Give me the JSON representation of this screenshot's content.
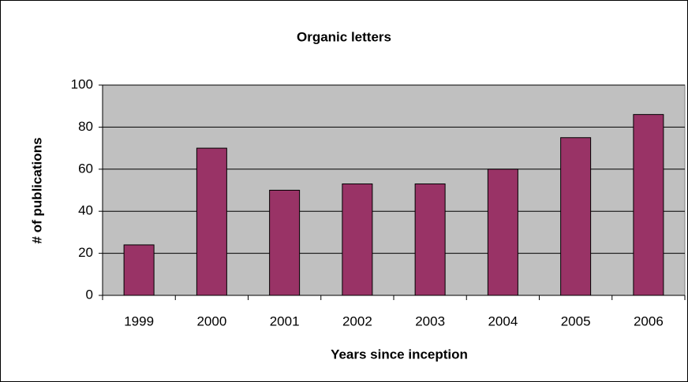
{
  "chart_data": {
    "type": "bar",
    "title": "Organic letters",
    "x_label": "Years since inception",
    "y_label": "# of publications",
    "categories": [
      "1999",
      "2000",
      "2001",
      "2002",
      "2003",
      "2004",
      "2005",
      "2006"
    ],
    "values": [
      24,
      70,
      50,
      53,
      53,
      60,
      75,
      86
    ],
    "color": "#993366",
    "ylim": [
      0,
      100
    ],
    "yticks": [
      0,
      20,
      40,
      60,
      80,
      100
    ],
    "grid": true
  }
}
